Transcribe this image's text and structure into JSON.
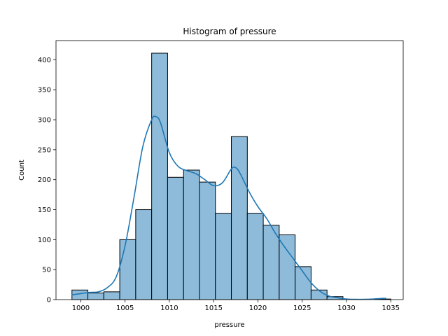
{
  "chart_data": {
    "type": "bar",
    "subtype": "histogram-with-kde",
    "title": "Histogram of pressure",
    "xlabel": "pressure",
    "ylabel": "Count",
    "xlim": [
      997.2,
      1036.4
    ],
    "ylim": [
      0,
      432
    ],
    "xticks": [
      1000,
      1005,
      1010,
      1015,
      1020,
      1025,
      1030,
      1035
    ],
    "yticks": [
      0,
      50,
      100,
      150,
      200,
      250,
      300,
      350,
      400
    ],
    "grid": false,
    "legend": "none",
    "bar_color": "#8ebbd9",
    "bar_edge_color": "#000000",
    "kde_color": "#1f77b4",
    "bins": [
      {
        "x0": 999.0,
        "x1": 1000.8,
        "count": 16
      },
      {
        "x0": 1000.8,
        "x1": 1002.6,
        "count": 11
      },
      {
        "x0": 1002.6,
        "x1": 1004.4,
        "count": 13
      },
      {
        "x0": 1004.4,
        "x1": 1006.2,
        "count": 100
      },
      {
        "x0": 1006.2,
        "x1": 1008.0,
        "count": 150
      },
      {
        "x0": 1008.0,
        "x1": 1009.8,
        "count": 411
      },
      {
        "x0": 1009.8,
        "x1": 1011.6,
        "count": 204
      },
      {
        "x0": 1011.6,
        "x1": 1013.4,
        "count": 216
      },
      {
        "x0": 1013.4,
        "x1": 1015.2,
        "count": 196
      },
      {
        "x0": 1015.2,
        "x1": 1017.0,
        "count": 144
      },
      {
        "x0": 1017.0,
        "x1": 1018.8,
        "count": 272
      },
      {
        "x0": 1018.8,
        "x1": 1020.6,
        "count": 144
      },
      {
        "x0": 1020.6,
        "x1": 1022.4,
        "count": 124
      },
      {
        "x0": 1022.4,
        "x1": 1024.2,
        "count": 108
      },
      {
        "x0": 1024.2,
        "x1": 1026.0,
        "count": 55
      },
      {
        "x0": 1026.0,
        "x1": 1027.8,
        "count": 16
      },
      {
        "x0": 1027.8,
        "x1": 1029.6,
        "count": 5
      },
      {
        "x0": 1029.6,
        "x1": 1031.4,
        "count": 0
      },
      {
        "x0": 1031.4,
        "x1": 1033.2,
        "count": 0
      },
      {
        "x0": 1033.2,
        "x1": 1035.0,
        "count": 1
      }
    ],
    "kde": {
      "x": [
        999.0,
        1000.0,
        1001.0,
        1002.0,
        1003.0,
        1004.0,
        1005.0,
        1006.0,
        1007.0,
        1008.0,
        1008.5,
        1009.0,
        1010.0,
        1011.0,
        1012.0,
        1013.0,
        1014.0,
        1015.0,
        1016.0,
        1017.0,
        1017.5,
        1018.0,
        1019.0,
        1020.0,
        1021.0,
        1022.0,
        1023.0,
        1024.0,
        1025.0,
        1026.0,
        1027.0,
        1028.0,
        1029.0,
        1030.0,
        1031.0,
        1032.0,
        1033.0,
        1034.0,
        1034.5
      ],
      "y": [
        8,
        10,
        12,
        13,
        20,
        38,
        90,
        170,
        255,
        300,
        305,
        295,
        245,
        222,
        215,
        210,
        200,
        190,
        195,
        218,
        220,
        210,
        180,
        155,
        135,
        110,
        88,
        68,
        48,
        28,
        14,
        6,
        3,
        1,
        0.5,
        0.5,
        1,
        2,
        2
      ]
    }
  }
}
